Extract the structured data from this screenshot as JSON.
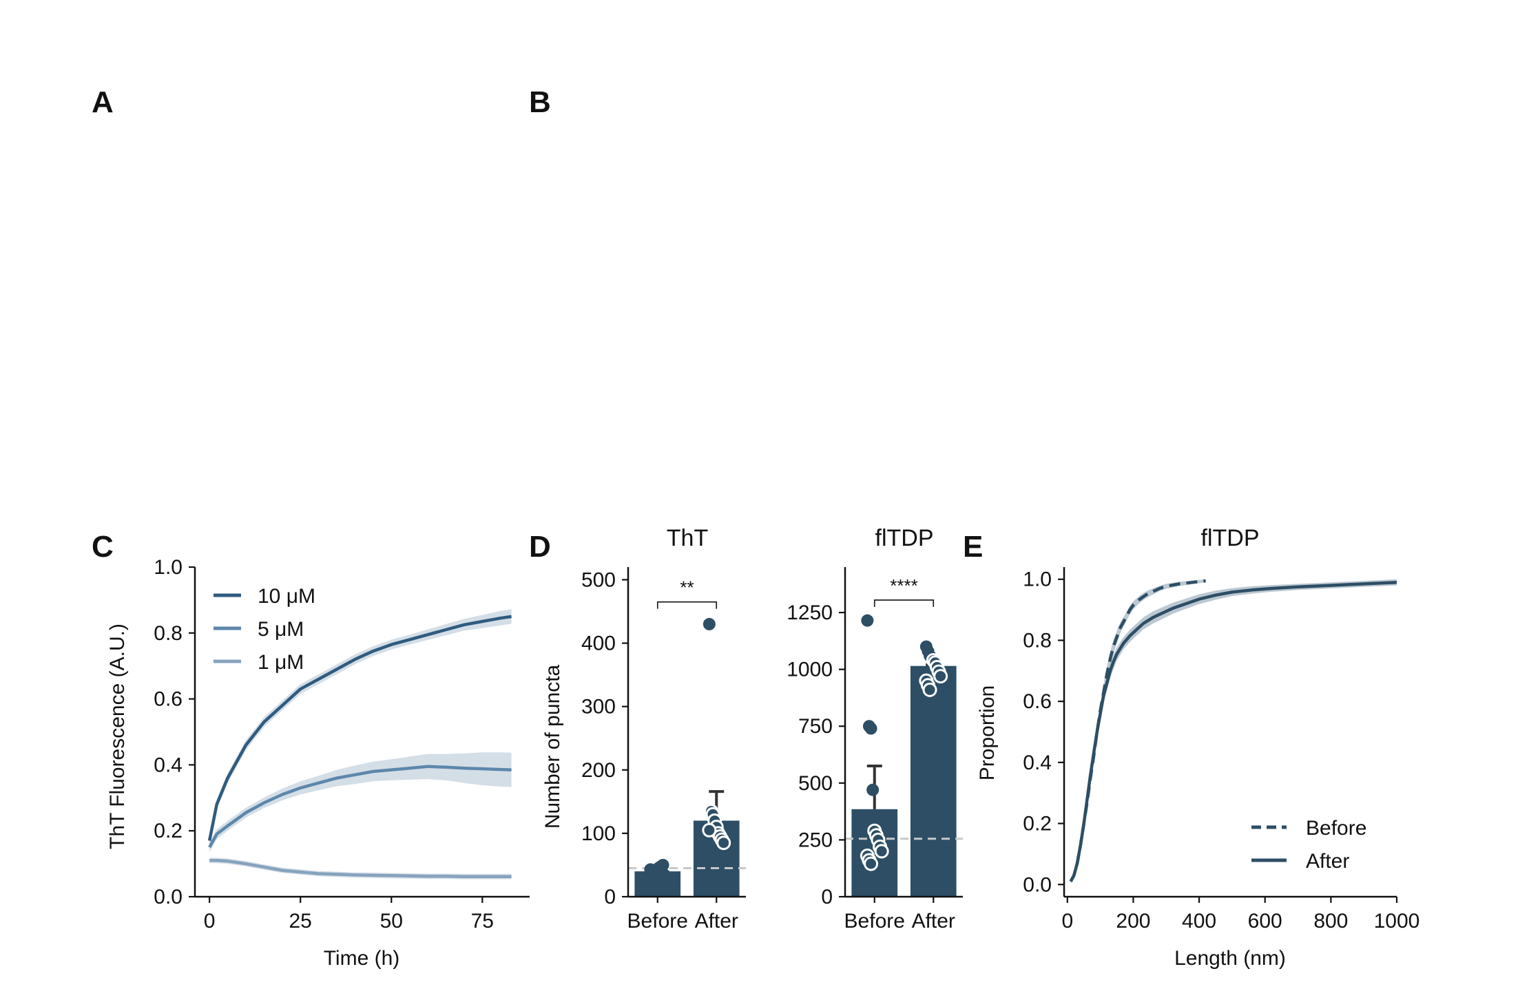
{
  "panel_letters": {
    "a": "A",
    "b": "B",
    "c": "C",
    "d": "D",
    "e": "E"
  },
  "colors": {
    "conc_10": "#2f5b7f",
    "conc_5": "#5d87ab",
    "conc_1": "#86a3bd",
    "band": "#c5d3df",
    "bar": "#2d4e65",
    "point_fill": "#2d4e65",
    "point_edge": "#ffffff",
    "baseline": "#c8c8c8",
    "ecdf_band": "#9fb0bd"
  },
  "chart_data": [
    {
      "panel": "C",
      "type": "line",
      "title": "",
      "xlabel": "Time (h)",
      "ylabel": "ThT Fluorescence (A.U.)",
      "xlim": [
        -4,
        88
      ],
      "ylim": [
        0,
        1.0
      ],
      "xticks": [
        "0",
        "25",
        "50",
        "75"
      ],
      "xtick_values": [
        0,
        25,
        50,
        75
      ],
      "yticks": [
        "0.0",
        "0.2",
        "0.4",
        "0.6",
        "0.8",
        "1.0"
      ],
      "ytick_values": [
        0,
        0.2,
        0.4,
        0.6,
        0.8,
        1.0
      ],
      "grid": false,
      "legend_position": "upper-left",
      "series": [
        {
          "name": "10 μM",
          "x": [
            0,
            2,
            5,
            10,
            15,
            20,
            25,
            30,
            35,
            40,
            45,
            50,
            55,
            60,
            65,
            70,
            75,
            80,
            83
          ],
          "y": [
            0.17,
            0.28,
            0.36,
            0.46,
            0.53,
            0.58,
            0.63,
            0.66,
            0.69,
            0.72,
            0.745,
            0.765,
            0.78,
            0.795,
            0.81,
            0.825,
            0.835,
            0.845,
            0.85
          ],
          "band": [
            0.015,
            0.015,
            0.015,
            0.015,
            0.015,
            0.015,
            0.015,
            0.015,
            0.015,
            0.015,
            0.015,
            0.015,
            0.015,
            0.016,
            0.017,
            0.018,
            0.02,
            0.022,
            0.022
          ]
        },
        {
          "name": "5 μM",
          "x": [
            0,
            2,
            5,
            10,
            15,
            20,
            25,
            30,
            35,
            40,
            45,
            50,
            55,
            60,
            65,
            70,
            75,
            80,
            83
          ],
          "y": [
            0.15,
            0.19,
            0.215,
            0.255,
            0.285,
            0.31,
            0.33,
            0.345,
            0.36,
            0.37,
            0.38,
            0.385,
            0.39,
            0.395,
            0.393,
            0.39,
            0.388,
            0.386,
            0.385
          ],
          "band": [
            0.015,
            0.015,
            0.015,
            0.015,
            0.016,
            0.018,
            0.02,
            0.022,
            0.025,
            0.028,
            0.03,
            0.032,
            0.035,
            0.038,
            0.04,
            0.045,
            0.05,
            0.052,
            0.052
          ]
        },
        {
          "name": "1 μM",
          "x": [
            0,
            2,
            5,
            10,
            15,
            20,
            25,
            30,
            35,
            40,
            45,
            50,
            55,
            60,
            65,
            70,
            75,
            80,
            83
          ],
          "y": [
            0.11,
            0.11,
            0.108,
            0.1,
            0.09,
            0.08,
            0.075,
            0.07,
            0.068,
            0.066,
            0.065,
            0.064,
            0.063,
            0.062,
            0.062,
            0.061,
            0.061,
            0.061,
            0.061
          ],
          "band": [
            0.008,
            0.008,
            0.008,
            0.008,
            0.008,
            0.008,
            0.008,
            0.008,
            0.008,
            0.008,
            0.008,
            0.008,
            0.008,
            0.008,
            0.008,
            0.008,
            0.008,
            0.008,
            0.008
          ]
        }
      ]
    },
    {
      "panel": "D-left",
      "type": "bar",
      "title": "ThT",
      "xlabel": "",
      "ylabel": "Number of puncta",
      "categories": [
        "Before",
        "After"
      ],
      "values": [
        40,
        120
      ],
      "error_upper": [
        6,
        166
      ],
      "ylim": [
        0,
        520
      ],
      "yticks": [
        "0",
        "100",
        "200",
        "300",
        "400",
        "500"
      ],
      "ytick_values": [
        0,
        100,
        200,
        300,
        400,
        500
      ],
      "baseline_value": 45,
      "points": [
        [
          36,
          38,
          40,
          42,
          44,
          46,
          48,
          50,
          34,
          43
        ],
        [
          430,
          135,
          130,
          120,
          110,
          100,
          95,
          90,
          85,
          105
        ]
      ],
      "significance": "**",
      "significance_y": 465,
      "grid": false
    },
    {
      "panel": "D-right",
      "type": "bar",
      "title": "flTDP",
      "xlabel": "",
      "ylabel": "",
      "categories": [
        "Before",
        "After"
      ],
      "values": [
        385,
        1015
      ],
      "error_upper": [
        575,
        1020
      ],
      "ylim": [
        0,
        1450
      ],
      "yticks": [
        "0",
        "250",
        "500",
        "750",
        "1000",
        "1250"
      ],
      "ytick_values": [
        0,
        250,
        500,
        750,
        1000,
        1250
      ],
      "baseline_value": 255,
      "points": [
        [
          1215,
          750,
          740,
          470,
          290,
          270,
          250,
          220,
          200,
          180,
          160,
          145
        ],
        [
          1100,
          1080,
          1060,
          1050,
          1040,
          1030,
          1010,
          990,
          970,
          950,
          930,
          910
        ]
      ],
      "significance": "****",
      "significance_y": 1305,
      "grid": false
    },
    {
      "panel": "E",
      "type": "line",
      "title": "flTDP",
      "xlabel": "Length (nm)",
      "ylabel": "Proportion",
      "xlim": [
        -10,
        1000
      ],
      "ylim": [
        -0.04,
        1.04
      ],
      "xticks": [
        "0",
        "200",
        "400",
        "600",
        "800",
        "1000"
      ],
      "xtick_values": [
        0,
        200,
        400,
        600,
        800,
        1000
      ],
      "yticks": [
        "0.0",
        "0.2",
        "0.4",
        "0.6",
        "0.8",
        "1.0"
      ],
      "ytick_values": [
        0,
        0.2,
        0.4,
        0.6,
        0.8,
        1.0
      ],
      "grid": false,
      "legend_position": "lower-right",
      "series": [
        {
          "name": "Before",
          "dashed": true,
          "x": [
            10,
            20,
            30,
            40,
            50,
            60,
            70,
            80,
            90,
            100,
            110,
            120,
            130,
            140,
            150,
            160,
            170,
            180,
            190,
            200,
            220,
            240,
            260,
            280,
            300,
            340,
            380,
            420
          ],
          "y": [
            0.01,
            0.03,
            0.07,
            0.13,
            0.2,
            0.27,
            0.35,
            0.42,
            0.5,
            0.57,
            0.63,
            0.69,
            0.74,
            0.78,
            0.81,
            0.84,
            0.86,
            0.88,
            0.9,
            0.915,
            0.935,
            0.95,
            0.96,
            0.97,
            0.977,
            0.985,
            0.99,
            0.995
          ],
          "band": [
            0.005,
            0.01,
            0.015,
            0.018,
            0.02,
            0.022,
            0.024,
            0.025,
            0.025,
            0.025,
            0.025,
            0.025,
            0.024,
            0.022,
            0.02,
            0.018,
            0.016,
            0.015,
            0.014,
            0.013,
            0.012,
            0.011,
            0.01,
            0.009,
            0.008,
            0.007,
            0.006,
            0.005
          ]
        },
        {
          "name": "After",
          "dashed": false,
          "x": [
            10,
            20,
            30,
            40,
            50,
            60,
            70,
            80,
            90,
            100,
            110,
            120,
            130,
            140,
            150,
            170,
            190,
            210,
            230,
            260,
            290,
            320,
            360,
            400,
            450,
            500,
            560,
            620,
            700,
            800,
            900,
            1000
          ],
          "y": [
            0.01,
            0.03,
            0.07,
            0.13,
            0.2,
            0.28,
            0.36,
            0.43,
            0.5,
            0.56,
            0.62,
            0.66,
            0.7,
            0.73,
            0.755,
            0.79,
            0.815,
            0.835,
            0.855,
            0.875,
            0.89,
            0.905,
            0.92,
            0.935,
            0.948,
            0.958,
            0.965,
            0.97,
            0.975,
            0.98,
            0.985,
            0.99
          ],
          "band": [
            0.005,
            0.01,
            0.015,
            0.018,
            0.02,
            0.022,
            0.024,
            0.025,
            0.025,
            0.025,
            0.025,
            0.025,
            0.024,
            0.023,
            0.022,
            0.02,
            0.02,
            0.02,
            0.02,
            0.02,
            0.019,
            0.018,
            0.017,
            0.016,
            0.015,
            0.013,
            0.012,
            0.011,
            0.01,
            0.01,
            0.01,
            0.01
          ]
        }
      ]
    }
  ]
}
